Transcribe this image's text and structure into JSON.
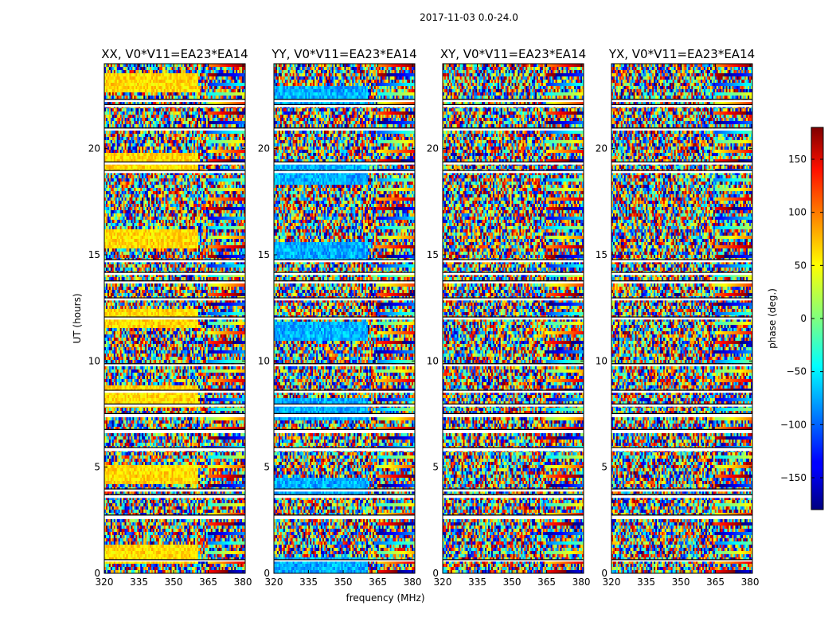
{
  "chart_data": {
    "type": "heatmap",
    "suptitle": "2017-11-03 0.0-24.0",
    "panels": [
      {
        "title": "XX, V0*V11=EA23*EA14",
        "bias": "warm"
      },
      {
        "title": "YY, V0*V11=EA23*EA14",
        "bias": "cool"
      },
      {
        "title": "XY, V0*V11=EA23*EA14",
        "bias": "none"
      },
      {
        "title": "YX, V0*V11=EA23*EA14",
        "bias": "none"
      }
    ],
    "xlabel": "frequency (MHz)",
    "ylabel": "UT (hours)",
    "xlim": [
      320,
      381
    ],
    "ylim": [
      0,
      24
    ],
    "xticks": [
      320,
      335,
      350,
      365,
      380
    ],
    "yticks": [
      0,
      5,
      10,
      15,
      20
    ],
    "colorbar": {
      "label": "phase (deg.)",
      "range": [
        -180,
        180
      ],
      "ticks": [
        -150,
        -100,
        -50,
        0,
        50,
        100,
        150
      ],
      "tick_labels": [
        "−150",
        "−100",
        "−50",
        "0",
        "50",
        "100",
        "150"
      ],
      "colormap": "jet"
    },
    "gap_bands_ut": [
      [
        0.55,
        0.62
      ],
      [
        2.55,
        2.72
      ],
      [
        3.55,
        3.68
      ],
      [
        3.85,
        3.95
      ],
      [
        5.75,
        5.9
      ],
      [
        6.6,
        6.75
      ],
      [
        7.35,
        7.5
      ],
      [
        7.85,
        7.95
      ],
      [
        8.5,
        8.6
      ],
      [
        9.75,
        9.85
      ],
      [
        11.95,
        12.05
      ],
      [
        12.85,
        12.95
      ],
      [
        13.65,
        13.75
      ],
      [
        14.05,
        14.15
      ],
      [
        14.65,
        14.75
      ],
      [
        18.85,
        18.95
      ],
      [
        19.25,
        19.35
      ],
      [
        20.85,
        20.95
      ],
      [
        21.95,
        22.05
      ],
      [
        22.2,
        22.3
      ]
    ]
  }
}
